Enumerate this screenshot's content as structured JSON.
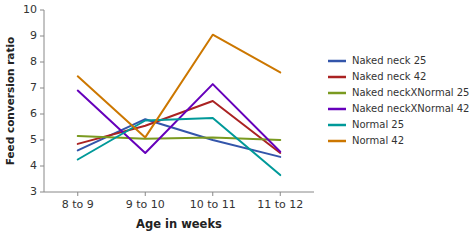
{
  "chart_data": {
    "type": "line",
    "categories": [
      "8 to 9",
      "9 to 10",
      "10 to 11",
      "11 to 12"
    ],
    "series": [
      {
        "name": "Naked neck 25",
        "color": "#3355aa",
        "values": [
          4.6,
          5.8,
          5.0,
          4.35
        ]
      },
      {
        "name": "Naked neck 42",
        "color": "#aa2222",
        "values": [
          4.85,
          5.55,
          6.5,
          4.5
        ]
      },
      {
        "name": "Naked neckXNormal 25",
        "color": "#7a9a20",
        "values": [
          5.15,
          5.05,
          5.1,
          5.0
        ]
      },
      {
        "name": "Naked neckXNormal 42",
        "color": "#6600bb",
        "values": [
          6.9,
          4.5,
          7.15,
          4.55
        ]
      },
      {
        "name": "Normal 25",
        "color": "#009999",
        "values": [
          4.25,
          5.75,
          5.85,
          3.65
        ]
      },
      {
        "name": "Normal 42",
        "color": "#cc7700",
        "values": [
          7.45,
          5.1,
          9.05,
          7.6
        ]
      }
    ],
    "xlabel": "Age in weeks",
    "ylabel": "Feed conversion ratio",
    "ylim": [
      3,
      10
    ],
    "yticks": [
      3,
      4,
      5,
      6,
      7,
      8,
      9,
      10
    ],
    "grid": false,
    "legend": "right"
  }
}
